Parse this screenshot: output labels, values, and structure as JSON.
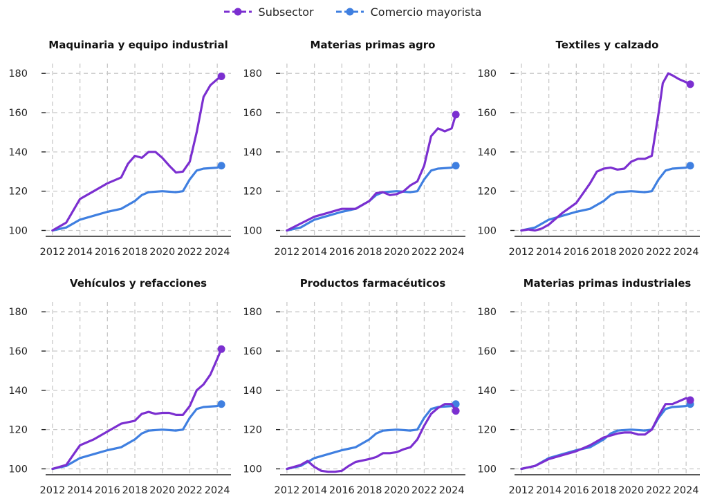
{
  "legend": {
    "subsector_label": "Subsector",
    "wholesale_label": "Comercio mayorista"
  },
  "colors": {
    "subsector": "#7B2FD0",
    "wholesale": "#3F7FE0"
  },
  "chart_data": {
    "type": "line",
    "x_ticks": [
      "2012",
      "2014",
      "2016",
      "2018",
      "2020",
      "2022",
      "2024"
    ],
    "y_ticks": [
      100,
      120,
      140,
      160,
      180
    ],
    "xlim": [
      2011.5,
      2025.0
    ],
    "ylim": [
      97,
      185
    ],
    "grid": true,
    "legend_position": "top",
    "shared_series": {
      "name": "Comercio mayorista",
      "x": [
        2012,
        2013,
        2014,
        2015,
        2016,
        2017,
        2018,
        2018.5,
        2019,
        2020,
        2021,
        2021.5,
        2022,
        2022.5,
        2023,
        2024,
        2024.3
      ],
      "y": [
        100,
        101.5,
        105.5,
        107.5,
        109.5,
        111,
        115,
        118,
        119.5,
        120,
        119.5,
        120,
        126,
        130.5,
        131.5,
        132,
        133
      ]
    },
    "panels": [
      {
        "title": "Maquinaria y equipo industrial",
        "subsector": {
          "x": [
            2012,
            2013,
            2013.5,
            2014,
            2014.5,
            2015,
            2016,
            2017,
            2017.5,
            2018,
            2018.5,
            2019,
            2019.5,
            2020,
            2020.5,
            2021,
            2021.5,
            2022,
            2022.5,
            2023,
            2023.5,
            2024,
            2024.3
          ],
          "y": [
            100,
            104,
            110,
            116,
            118,
            120,
            124,
            127,
            134,
            138,
            137,
            140,
            140,
            137,
            133,
            129.5,
            130,
            135,
            150,
            168,
            174,
            177,
            178.5
          ]
        }
      },
      {
        "title": "Materias primas agro",
        "subsector": {
          "x": [
            2012,
            2013,
            2014,
            2015,
            2016,
            2017,
            2018,
            2018.5,
            2019,
            2019.5,
            2020,
            2020.5,
            2021,
            2021.5,
            2022,
            2022.5,
            2023,
            2023.5,
            2024,
            2024.3
          ],
          "y": [
            100,
            103.5,
            107,
            109,
            111,
            111,
            115,
            119,
            119.5,
            118,
            118.5,
            120,
            123,
            125,
            133,
            148,
            152,
            150.5,
            152,
            159
          ]
        }
      },
      {
        "title": "Textiles y calzado",
        "subsector": {
          "x": [
            2012,
            2012.5,
            2013,
            2013.5,
            2014,
            2015,
            2016,
            2016.5,
            2017,
            2017.5,
            2018,
            2018.5,
            2019,
            2019.5,
            2020,
            2020.5,
            2021,
            2021.5,
            2022,
            2022.3,
            2022.7,
            2023,
            2023.5,
            2024,
            2024.3
          ],
          "y": [
            100,
            100.5,
            100,
            101,
            103,
            109,
            114,
            119,
            124,
            130,
            131.5,
            132,
            131,
            131.5,
            135,
            136.5,
            136.5,
            138,
            160,
            175,
            180,
            179,
            177,
            175.5,
            174.5
          ]
        }
      },
      {
        "title": "Vehículos y refacciones",
        "subsector": {
          "x": [
            2012,
            2013,
            2013.5,
            2014,
            2015,
            2016,
            2017,
            2018,
            2018.5,
            2019,
            2019.5,
            2020,
            2020.5,
            2021,
            2021.5,
            2022,
            2022.5,
            2023,
            2023.5,
            2024,
            2024.3
          ],
          "y": [
            100,
            102,
            107,
            112,
            115,
            119,
            123,
            124.5,
            128,
            129,
            128,
            128.5,
            128.5,
            127.5,
            127.5,
            132,
            140,
            143,
            148,
            156,
            161
          ]
        }
      },
      {
        "title": "Productos farmacéuticos",
        "subsector": {
          "x": [
            2012,
            2013,
            2013.5,
            2014,
            2014.5,
            2015,
            2015.5,
            2016,
            2016.5,
            2017,
            2018,
            2018.5,
            2019,
            2019.5,
            2020,
            2020.5,
            2021,
            2021.5,
            2022,
            2022.5,
            2023,
            2023.5,
            2024,
            2024.3
          ],
          "y": [
            100,
            102,
            104,
            101,
            99,
            98.5,
            98.5,
            99,
            101.5,
            103.5,
            105,
            106,
            108,
            108,
            108.5,
            110,
            111,
            115,
            122,
            128,
            131,
            133,
            133,
            129.5
          ]
        }
      },
      {
        "title": "Materias primas industriales",
        "subsector": {
          "x": [
            2012,
            2013,
            2014,
            2015,
            2016,
            2017,
            2018,
            2018.5,
            2019,
            2019.5,
            2020,
            2020.5,
            2021,
            2021.5,
            2022,
            2022.5,
            2023,
            2023.5,
            2024,
            2024.3
          ],
          "y": [
            100,
            101.5,
            105,
            107,
            109,
            112,
            116,
            117,
            118,
            118.5,
            118.5,
            117.5,
            117.5,
            120,
            127,
            133,
            133,
            134.5,
            136,
            135
          ]
        }
      }
    ]
  }
}
